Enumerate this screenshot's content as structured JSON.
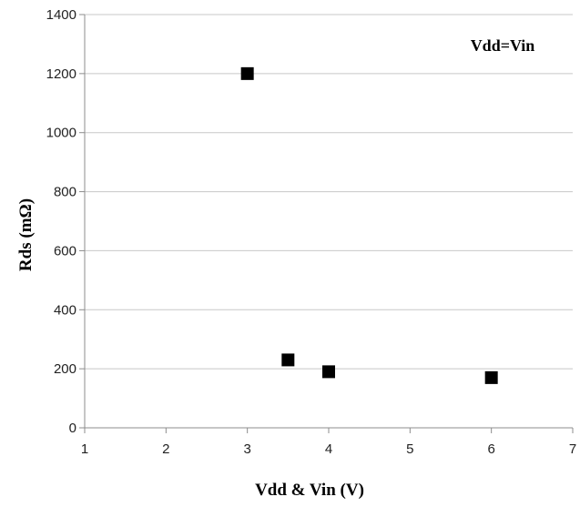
{
  "chart_data": {
    "type": "scatter",
    "xlabel": "Vdd & Vin (V)",
    "ylabel": "Rds (mΩ)",
    "annotation": "Vdd=Vin",
    "xlim": [
      1,
      7
    ],
    "ylim": [
      0,
      1400
    ],
    "x_ticks": [
      "1",
      "2",
      "3",
      "4",
      "5",
      "6",
      "7"
    ],
    "y_ticks": [
      "0",
      "200",
      "400",
      "600",
      "800",
      "1000",
      "1200",
      "1400"
    ],
    "grid": "horizontal",
    "legend": "none",
    "series": [
      {
        "marker": "square",
        "color": "#000000",
        "points": [
          {
            "x": 3,
            "y": 1200
          },
          {
            "x": 3.5,
            "y": 230
          },
          {
            "x": 4,
            "y": 190
          },
          {
            "x": 6,
            "y": 170
          }
        ]
      }
    ]
  },
  "colors": {
    "grid": "#c8c8c8",
    "axis": "#8c8c8c",
    "marker": "#000000"
  }
}
